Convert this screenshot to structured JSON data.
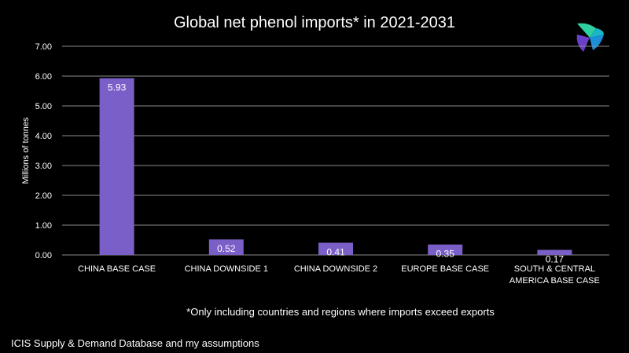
{
  "chart_data": {
    "type": "bar",
    "title": "Global net phenol imports* in 2021-2031",
    "ylabel": "Millions of tonnes",
    "xlabel": "",
    "categories": [
      [
        "CHINA BASE CASE"
      ],
      [
        "CHINA DOWNSIDE 1"
      ],
      [
        "CHINA DOWNSIDE 2"
      ],
      [
        "EUROPE BASE CASE"
      ],
      [
        "SOUTH & CENTRAL",
        "AMERICA BASE CASE"
      ]
    ],
    "values": [
      5.93,
      0.52,
      0.41,
      0.35,
      0.17
    ],
    "value_labels": [
      "5.93",
      "0.52",
      "0.41",
      "0.35",
      "0.17"
    ],
    "ylim": [
      0,
      7
    ],
    "y_ticks": [
      "0.00",
      "1.00",
      "2.00",
      "3.00",
      "4.00",
      "5.00",
      "6.00",
      "7.00"
    ],
    "grid": true,
    "legend": "none",
    "bar_color": "#7b5fc8",
    "grid_color": "#8c8c8c"
  },
  "footnote": "*Only including countries and regions where imports exceed exports",
  "source": "ICIS Supply & Demand Database and my assumptions",
  "logo": {
    "icon": "icis-logo-icon",
    "colors": [
      "#2fd0a0",
      "#1b8fd8",
      "#6a3fc8"
    ]
  }
}
